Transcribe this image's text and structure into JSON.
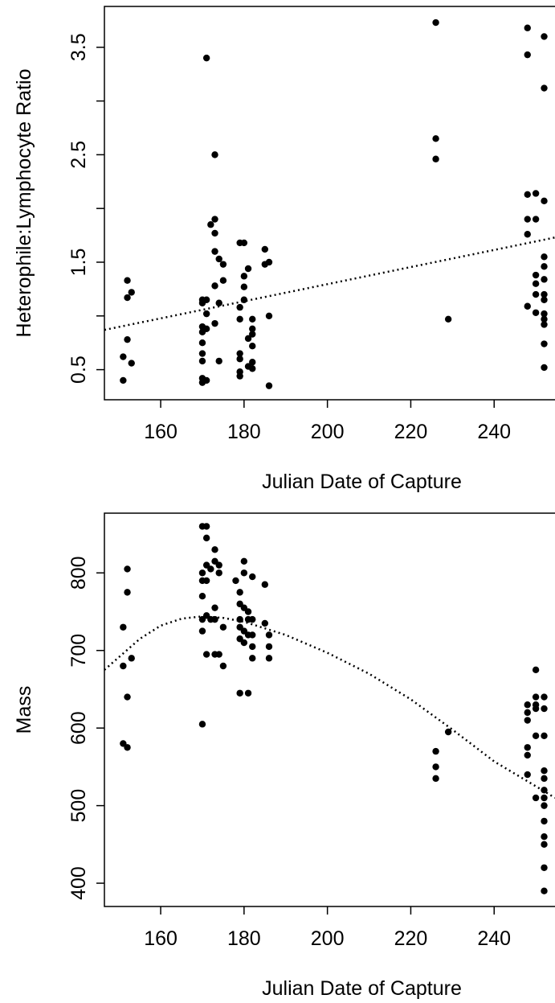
{
  "chart_data": [
    {
      "type": "scatter",
      "x_label": "Julian Date of Capture",
      "y_label": "Heterophile:Lymphocyte Ratio",
      "xlim": [
        146.5,
        254.6
      ],
      "ylim": [
        0.22,
        3.88
      ],
      "xticks": [
        160,
        180,
        200,
        220,
        240
      ],
      "yticks": [
        0.5,
        1.5,
        2.5,
        3.5
      ],
      "minor_yticks": [
        1,
        2,
        3
      ],
      "color": "#000000",
      "x": [
        151,
        151,
        152,
        152,
        152,
        153,
        153,
        170,
        170,
        170,
        170,
        170,
        170,
        170,
        170,
        170,
        171,
        171,
        171,
        171,
        171,
        172,
        173,
        173,
        173,
        173,
        173,
        173,
        174,
        174,
        174,
        175,
        175,
        179,
        179,
        179,
        179,
        179,
        179,
        179,
        180,
        180,
        180,
        180,
        181,
        181,
        181,
        182,
        182,
        182,
        182,
        182,
        182,
        185,
        185,
        186,
        186,
        186,
        226,
        226,
        226,
        229,
        248,
        248,
        248,
        248,
        248,
        248,
        250,
        250,
        250,
        250,
        250,
        250,
        252,
        252,
        252,
        252,
        252,
        252,
        252,
        252,
        252,
        252,
        252,
        252,
        252
      ],
      "values": [
        0.62,
        0.4,
        1.33,
        1.17,
        0.78,
        1.22,
        0.56,
        1.15,
        1.12,
        0.9,
        0.85,
        0.75,
        0.65,
        0.58,
        0.42,
        0.38,
        3.4,
        1.15,
        1.02,
        0.88,
        0.4,
        1.85,
        2.5,
        1.9,
        1.77,
        1.6,
        1.28,
        0.93,
        1.53,
        1.12,
        0.58,
        1.48,
        1.33,
        1.68,
        1.08,
        0.97,
        0.65,
        0.6,
        0.48,
        0.44,
        1.68,
        1.37,
        1.27,
        1.15,
        1.44,
        0.79,
        0.53,
        0.97,
        0.88,
        0.83,
        0.72,
        0.57,
        0.51,
        1.62,
        1.48,
        1.5,
        1.0,
        0.35,
        3.73,
        2.65,
        2.46,
        0.97,
        3.68,
        3.43,
        2.13,
        1.9,
        1.76,
        1.09,
        2.14,
        1.9,
        1.38,
        1.3,
        1.2,
        1.03,
        3.6,
        3.12,
        2.07,
        1.55,
        1.46,
        1.34,
        1.2,
        1.15,
        1.02,
        0.97,
        0.92,
        0.74,
        0.52
      ],
      "trend": {
        "x": [
          146.5,
          254.6
        ],
        "y": [
          0.87,
          1.73
        ]
      }
    },
    {
      "type": "scatter",
      "x_label": "Julian Date of Capture",
      "y_label": "Mass",
      "xlim": [
        146.5,
        254.6
      ],
      "ylim": [
        370,
        877
      ],
      "xticks": [
        160,
        180,
        200,
        220,
        240
      ],
      "yticks": [
        400,
        500,
        600,
        700,
        800
      ],
      "color": "#000000",
      "x": [
        151,
        151,
        151,
        152,
        152,
        152,
        152,
        153,
        170,
        170,
        170,
        170,
        170,
        170,
        170,
        171,
        171,
        171,
        171,
        171,
        171,
        172,
        172,
        173,
        173,
        173,
        173,
        173,
        174,
        174,
        174,
        175,
        175,
        178,
        179,
        179,
        179,
        179,
        179,
        179,
        180,
        180,
        180,
        180,
        180,
        181,
        181,
        181,
        181,
        182,
        182,
        182,
        182,
        182,
        185,
        185,
        186,
        186,
        186,
        226,
        226,
        226,
        229,
        248,
        248,
        248,
        248,
        248,
        248,
        250,
        250,
        250,
        250,
        250,
        250,
        252,
        252,
        252,
        252,
        252,
        252,
        252,
        252,
        252,
        252,
        252,
        252,
        252
      ],
      "values": [
        730,
        680,
        580,
        805,
        775,
        640,
        575,
        690,
        860,
        800,
        790,
        770,
        740,
        725,
        605,
        860,
        845,
        810,
        790,
        745,
        695,
        805,
        740,
        830,
        815,
        755,
        740,
        695,
        810,
        800,
        695,
        730,
        680,
        790,
        775,
        760,
        740,
        730,
        715,
        645,
        815,
        800,
        755,
        725,
        710,
        750,
        740,
        720,
        645,
        795,
        740,
        720,
        705,
        690,
        785,
        735,
        720,
        705,
        690,
        570,
        550,
        535,
        595,
        630,
        620,
        610,
        575,
        565,
        540,
        675,
        640,
        630,
        625,
        590,
        510,
        640,
        625,
        590,
        545,
        535,
        520,
        510,
        500,
        480,
        460,
        450,
        420,
        390
      ],
      "trend": {
        "x": [
          146.5,
          155,
          160,
          165,
          170,
          175,
          180,
          190,
          200,
          210,
          220,
          230,
          240,
          250,
          254.6
        ],
        "y": [
          675,
          715,
          732,
          741,
          744,
          742,
          737,
          720,
          697,
          670,
          637,
          598,
          557,
          525,
          510
        ]
      }
    }
  ]
}
